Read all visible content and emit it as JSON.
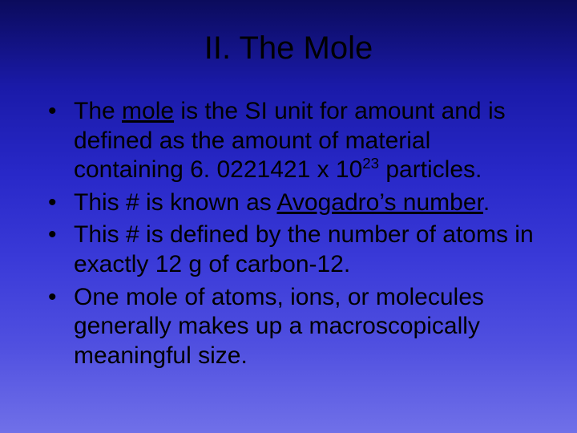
{
  "slide": {
    "title": "II. The Mole",
    "title_fontsize": 40,
    "body_fontsize": 30,
    "text_color": "#000000",
    "background_gradient": [
      "#0b0b5c",
      "#1a1aa8",
      "#2828c8",
      "#3a3ad8",
      "#5050e0",
      "#7070e8"
    ],
    "bullets": [
      {
        "b1_a": "The ",
        "b1_u": "mole",
        "b1_b": " is the SI unit for amount and is defined as the amount of material containing 6. 0221421 x 10",
        "b1_exp": "23",
        "b1_c": " particles."
      },
      {
        "b2_a": "This # is known as ",
        "b2_u": "Avogadro’s number",
        "b2_b": "."
      },
      {
        "b3": "This # is defined by the number of atoms in exactly 12 g of carbon-12."
      },
      {
        "b4": "One mole of atoms, ions, or molecules generally makes up a macroscopically meaningful size."
      }
    ]
  }
}
